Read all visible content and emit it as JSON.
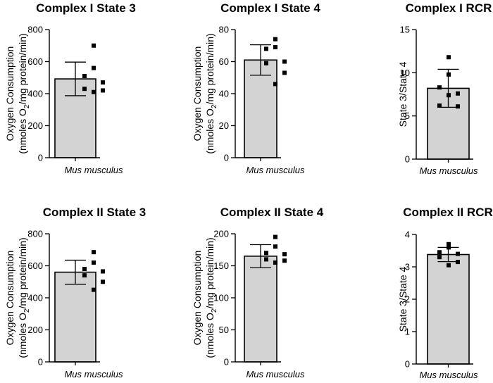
{
  "figure": {
    "style": {
      "bar_fill": "#d3d3d3",
      "bar_stroke": "#000000",
      "point_color": "#000000"
    }
  },
  "chart_data": [
    {
      "type": "bar",
      "title": "Complex I State 3",
      "ylabel_line1": "Oxygen Consumption",
      "ylabel_line2_prefix": "(nmoles O",
      "ylabel_line2_sub": "2",
      "ylabel_line2_suffix": "/mg protein/min)",
      "categories": [
        "Mus musculus"
      ],
      "values": [
        492
      ],
      "error": [
        105
      ],
      "points": [
        700,
        560,
        510,
        470,
        430,
        420,
        410
      ],
      "ylim": [
        0,
        800
      ],
      "yticks": [
        0,
        200,
        400,
        600,
        800
      ],
      "ytick_labels": [
        "0",
        "200",
        "400",
        "600",
        "800"
      ]
    },
    {
      "type": "bar",
      "title": "Complex I State 4",
      "ylabel_line1": "Oxygen Consumption",
      "ylabel_line2_prefix": "(nmoles O",
      "ylabel_line2_sub": "2",
      "ylabel_line2_suffix": "/mg protein/min)",
      "categories": [
        "Mus musculus"
      ],
      "values": [
        61
      ],
      "error": [
        9.5
      ],
      "points": [
        74,
        69,
        68,
        60,
        59,
        53,
        46
      ],
      "ylim": [
        0,
        80
      ],
      "yticks": [
        0,
        20,
        40,
        60,
        80
      ],
      "ytick_labels": [
        "0",
        "20",
        "40",
        "60",
        "80"
      ]
    },
    {
      "type": "bar",
      "title": "Complex I RCR",
      "ylabel_line1": "State 3/State 4",
      "categories": [
        "Mus musculus"
      ],
      "values": [
        8.2
      ],
      "error": [
        2.2
      ],
      "points": [
        11.8,
        9.8,
        8.3,
        7.6,
        6.2,
        6.1,
        7.4
      ],
      "ylim": [
        0,
        15
      ],
      "yticks": [
        0,
        5,
        10,
        15
      ],
      "ytick_labels": [
        "0",
        "5",
        "10",
        "15"
      ]
    },
    {
      "type": "bar",
      "title": "Complex II State 3",
      "ylabel_line1": "Oxygen Consumption",
      "ylabel_line2_prefix": "(nmoles O",
      "ylabel_line2_sub": "2",
      "ylabel_line2_suffix": "/mg protein/min)",
      "categories": [
        "Mus musculus"
      ],
      "values": [
        560
      ],
      "error": [
        75
      ],
      "points": [
        685,
        620,
        580,
        565,
        540,
        500,
        450
      ],
      "ylim": [
        0,
        800
      ],
      "yticks": [
        0,
        200,
        400,
        600,
        800
      ],
      "ytick_labels": [
        "0",
        "200",
        "400",
        "600",
        "800"
      ]
    },
    {
      "type": "bar",
      "title": "Complex II State 4",
      "ylabel_line1": "Oxygen Consumption",
      "ylabel_line2_prefix": "(nmoles O",
      "ylabel_line2_sub": "2",
      "ylabel_line2_suffix": "/mg protein/min)",
      "categories": [
        "Mus musculus"
      ],
      "values": [
        165
      ],
      "error": [
        18
      ],
      "points": [
        195,
        180,
        170,
        168,
        160,
        158,
        155
      ],
      "ylim": [
        0,
        200
      ],
      "yticks": [
        0,
        50,
        100,
        150,
        200
      ],
      "ytick_labels": [
        "0",
        "50",
        "100",
        "150",
        "200"
      ]
    },
    {
      "type": "bar",
      "title": "Complex II RCR",
      "ylabel_line1": "State 3/State 4",
      "categories": [
        "Mus musculus"
      ],
      "values": [
        3.38
      ],
      "error": [
        0.22
      ],
      "points": [
        3.7,
        3.6,
        3.45,
        3.4,
        3.3,
        3.15,
        3.05
      ],
      "ylim": [
        0,
        4
      ],
      "yticks": [
        0,
        1,
        2,
        3,
        4
      ],
      "ytick_labels": [
        "0",
        "1",
        "2",
        "3",
        "4"
      ]
    }
  ]
}
